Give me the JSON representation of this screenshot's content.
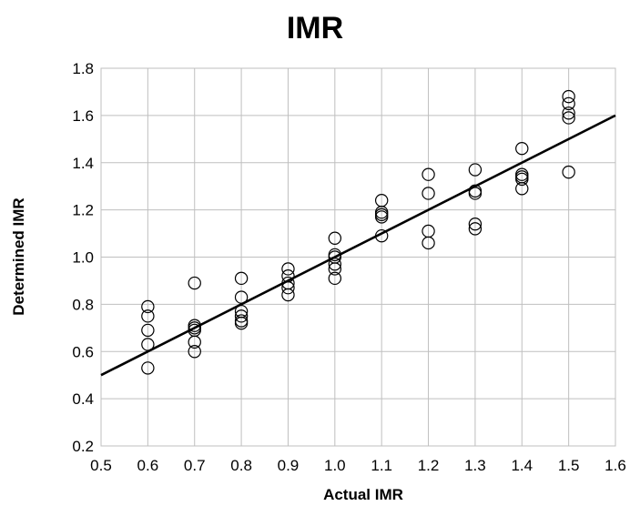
{
  "chart_data": {
    "type": "scatter",
    "title": "IMR",
    "xlabel": "Actual IMR",
    "ylabel": "Determined IMR",
    "xlim": [
      0.5,
      1.6
    ],
    "ylim": [
      0.2,
      1.8
    ],
    "x_ticks": [
      "0.5",
      "0.6",
      "0.7",
      "0.8",
      "0.9",
      "1.0",
      "1.1",
      "1.2",
      "1.3",
      "1.4",
      "1.5",
      "1.6"
    ],
    "y_ticks": [
      "0.2",
      "0.4",
      "0.6",
      "0.8",
      "1.0",
      "1.2",
      "1.4",
      "1.6",
      "1.8"
    ],
    "grid": true,
    "legend": "none",
    "marker": "open-circle",
    "colors": {
      "marker": "#000000",
      "line": "#000000",
      "grid": "#bfbfbf"
    },
    "series": [
      {
        "points": [
          [
            0.6,
            0.79
          ],
          [
            0.6,
            0.75
          ],
          [
            0.6,
            0.69
          ],
          [
            0.6,
            0.63
          ],
          [
            0.6,
            0.53
          ],
          [
            0.7,
            0.89
          ],
          [
            0.7,
            0.71
          ],
          [
            0.7,
            0.7
          ],
          [
            0.7,
            0.69
          ],
          [
            0.7,
            0.64
          ],
          [
            0.7,
            0.6
          ],
          [
            0.8,
            0.91
          ],
          [
            0.8,
            0.83
          ],
          [
            0.8,
            0.77
          ],
          [
            0.8,
            0.75
          ],
          [
            0.8,
            0.73
          ],
          [
            0.8,
            0.72
          ],
          [
            0.9,
            0.95
          ],
          [
            0.9,
            0.92
          ],
          [
            0.9,
            0.89
          ],
          [
            0.9,
            0.87
          ],
          [
            0.9,
            0.84
          ],
          [
            1.0,
            1.08
          ],
          [
            1.0,
            1.01
          ],
          [
            1.0,
            1.0
          ],
          [
            1.0,
            0.97
          ],
          [
            1.0,
            0.95
          ],
          [
            1.0,
            0.91
          ],
          [
            1.1,
            1.24
          ],
          [
            1.1,
            1.19
          ],
          [
            1.1,
            1.18
          ],
          [
            1.1,
            1.17
          ],
          [
            1.1,
            1.09
          ],
          [
            1.2,
            1.35
          ],
          [
            1.2,
            1.27
          ],
          [
            1.2,
            1.11
          ],
          [
            1.2,
            1.06
          ],
          [
            1.3,
            1.37
          ],
          [
            1.3,
            1.28
          ],
          [
            1.3,
            1.27
          ],
          [
            1.3,
            1.14
          ],
          [
            1.3,
            1.12
          ],
          [
            1.4,
            1.46
          ],
          [
            1.4,
            1.35
          ],
          [
            1.4,
            1.34
          ],
          [
            1.4,
            1.33
          ],
          [
            1.4,
            1.29
          ],
          [
            1.5,
            1.68
          ],
          [
            1.5,
            1.65
          ],
          [
            1.5,
            1.61
          ],
          [
            1.5,
            1.59
          ],
          [
            1.5,
            1.36
          ]
        ]
      }
    ],
    "trendline": {
      "x": [
        0.5,
        1.6
      ],
      "y": [
        0.5,
        1.6
      ]
    }
  }
}
